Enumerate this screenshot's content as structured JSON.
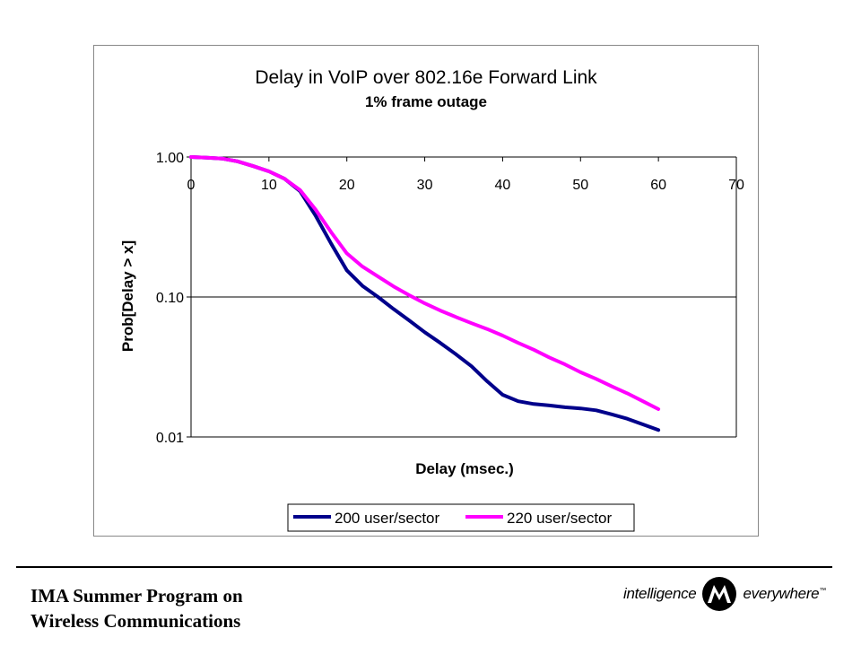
{
  "chart_data": {
    "type": "line",
    "title": "Delay in VoIP over 802.16e Forward Link",
    "subtitle": "1% frame outage",
    "xlabel": "Delay (msec.)",
    "ylabel": "Prob[Delay > x]",
    "xlim": [
      0,
      70
    ],
    "ylim": [
      0.01,
      1.0
    ],
    "yscale": "log",
    "xticks": [
      "0",
      "10",
      "20",
      "30",
      "40",
      "50",
      "60",
      "70"
    ],
    "yticks": [
      "1.00",
      "0.10",
      "0.01"
    ],
    "grid": "horizontal major gridlines",
    "legend_position": "bottom",
    "x": [
      0,
      2,
      4,
      6,
      8,
      10,
      12,
      14,
      16,
      18,
      20,
      22,
      24,
      26,
      28,
      30,
      32,
      34,
      36,
      38,
      40,
      42,
      44,
      46,
      48,
      50,
      52,
      54,
      56,
      58,
      60
    ],
    "series": [
      {
        "name": "200 user/sector",
        "color": "#00008B",
        "values": [
          1.0,
          0.99,
          0.975,
          0.93,
          0.86,
          0.79,
          0.7,
          0.57,
          0.38,
          0.24,
          0.155,
          0.12,
          0.1,
          0.082,
          0.068,
          0.056,
          0.047,
          0.039,
          0.032,
          0.025,
          0.02,
          0.018,
          0.0172,
          0.0168,
          0.0163,
          0.016,
          0.0155,
          0.0145,
          0.0135,
          0.0123,
          0.0112
        ]
      },
      {
        "name": "220 user/sector",
        "color": "#FF00FF",
        "values": [
          1.0,
          0.99,
          0.975,
          0.93,
          0.86,
          0.79,
          0.7,
          0.58,
          0.42,
          0.29,
          0.205,
          0.165,
          0.14,
          0.119,
          0.103,
          0.09,
          0.08,
          0.072,
          0.065,
          0.059,
          0.053,
          0.047,
          0.042,
          0.037,
          0.033,
          0.029,
          0.026,
          0.023,
          0.0205,
          0.018,
          0.0158
        ]
      }
    ]
  },
  "footer": {
    "line1": "IMA Summer Program on",
    "line2": "Wireless Communications"
  },
  "brand": {
    "left_word": "intelligence",
    "right_word": "everywhere",
    "trademark": "™"
  }
}
